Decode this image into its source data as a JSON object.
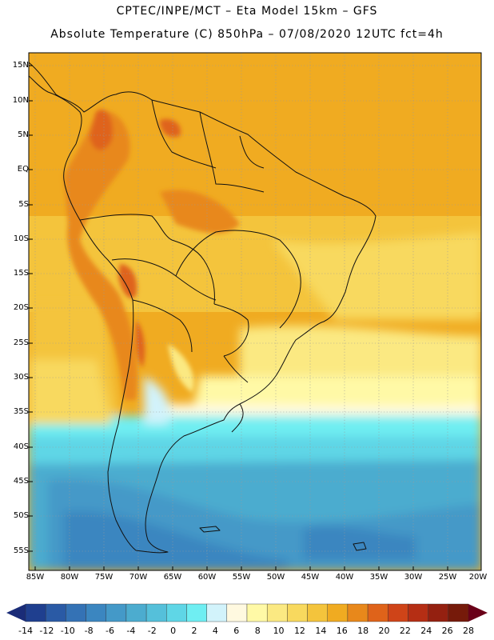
{
  "title_line1": "CPTEC/INPE/MCT –  Eta Model 15km – GFS",
  "title_line2": "Absolute Temperature (C) 850hPa – 07/08/2020 12UTC fct=4h",
  "lat_labels": [
    "15N",
    "10N",
    "5N",
    "EQ",
    "5S",
    "10S",
    "15S",
    "20S",
    "25S",
    "30S",
    "35S",
    "40S",
    "45S",
    "50S",
    "55S"
  ],
  "lon_labels": [
    "85W",
    "80W",
    "75W",
    "70W",
    "65W",
    "60W",
    "55W",
    "50W",
    "45W",
    "40W",
    "35W",
    "30W",
    "25W",
    "20W"
  ],
  "colorbar": {
    "labels": [
      "-14",
      "-12",
      "-10",
      "-8",
      "-6",
      "-4",
      "-2",
      "0",
      "2",
      "4",
      "6",
      "8",
      "10",
      "12",
      "14",
      "16",
      "18",
      "20",
      "22",
      "24",
      "26",
      "28"
    ],
    "colors": [
      "#1f3f8f",
      "#2a5aa5",
      "#3472b5",
      "#3b86c0",
      "#4499c8",
      "#4caccf",
      "#55c0da",
      "#5fd6e6",
      "#6feef2",
      "#d2f3fb",
      "#fff9e0",
      "#fff9a6",
      "#fbe982",
      "#f8d95e",
      "#f4c43c",
      "#f0ab21",
      "#e8881b",
      "#df631a",
      "#cf4418",
      "#b52e14",
      "#942010",
      "#761a0a"
    ],
    "arrow_left_color": "#1a2c78",
    "arrow_right_color": "#6a0018"
  }
}
